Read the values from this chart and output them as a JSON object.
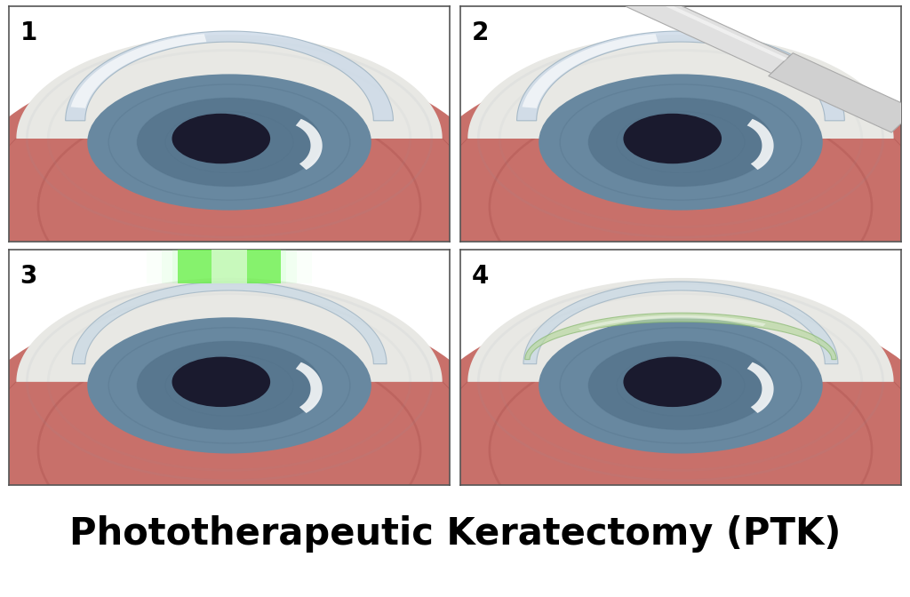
{
  "title": "Phototherapeutic Keratectomy (PTK)",
  "title_fontsize": 30,
  "title_fontweight": "bold",
  "background_color": "#ffffff",
  "panel_labels": [
    "1",
    "2",
    "3",
    "4"
  ],
  "panel_label_fontsize": 20,
  "eyeball_red": "#c8706a",
  "eyeball_red_dark": "#a05050",
  "sclera_white": "#e8e8e8",
  "sclera_shadow": "#c8ccd0",
  "cornea_blue": "#7090a8",
  "cornea_blue_light": "#90aabf",
  "iris_blue": "#6888a0",
  "iris_dark": "#4a6880",
  "pupil_dark": "#1a1a2e",
  "cornea_layer": "#d0dde8",
  "cornea_highlight": "#eef4f8",
  "green_laser": "#55ee55",
  "contact_lens": "#b8d8a0",
  "spatula_gray": "#d8d8d8",
  "panel_border": "#555555"
}
